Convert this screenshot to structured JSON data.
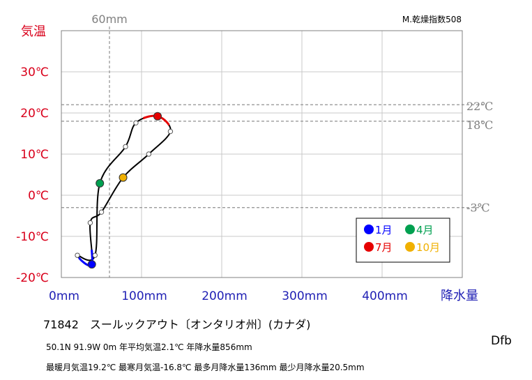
{
  "chart_data": {
    "type": "line",
    "x_axis": {
      "label": "降水量",
      "unit": "mm",
      "range": [
        0,
        500
      ],
      "ticks": [
        "0mm",
        "100mm",
        "200mm",
        "300mm",
        "400mm"
      ],
      "tick_values": [
        0,
        100,
        200,
        300,
        400
      ]
    },
    "y_axis": {
      "label": "気温",
      "unit": "℃",
      "range": [
        -20,
        40
      ],
      "ticks": [
        "30℃",
        "20℃",
        "10℃",
        "0℃",
        "-10℃",
        "-20℃"
      ],
      "tick_values": [
        30,
        20,
        10,
        0,
        -10,
        -20
      ]
    },
    "grid": true,
    "reference_lines": {
      "precip_mm": [
        {
          "value": 60,
          "label": "60mm"
        }
      ],
      "temp_c": [
        {
          "value": 22,
          "label": "22℃"
        },
        {
          "value": 18,
          "label": "18℃"
        },
        {
          "value": -3,
          "label": "-3℃"
        }
      ]
    },
    "aridity_label": "M.乾燥指数508",
    "points": [
      {
        "month": 1,
        "precip": 38,
        "temp": -16.8
      },
      {
        "month": 2,
        "precip": 20,
        "temp": -14.6
      },
      {
        "month": 3,
        "precip": 42,
        "temp": -14.6
      },
      {
        "month": 4,
        "precip": 48,
        "temp": 2.9
      },
      {
        "month": 5,
        "precip": 80,
        "temp": 11.8
      },
      {
        "month": 6,
        "precip": 93,
        "temp": 17.6
      },
      {
        "month": 7,
        "precip": 120,
        "temp": 19.2
      },
      {
        "month": 8,
        "precip": 136,
        "temp": 15.5
      },
      {
        "month": 9,
        "precip": 109,
        "temp": 10.0
      },
      {
        "month": 10,
        "precip": 77,
        "temp": 4.3
      },
      {
        "month": 11,
        "precip": 50,
        "temp": -4.1
      },
      {
        "month": 12,
        "precip": 36,
        "temp": -6.7
      }
    ],
    "highlights": [
      {
        "month": 1,
        "label": "1月",
        "color": "#0000ff"
      },
      {
        "month": 4,
        "label": "4月",
        "color": "#00a050"
      },
      {
        "month": 7,
        "label": "7月",
        "color": "#e60000"
      },
      {
        "month": 10,
        "label": "10月",
        "color": "#f0b000"
      }
    ],
    "legend": {
      "placement": "bottom-right"
    }
  },
  "station": {
    "line": "71842　スールックアウト〔オンタリオ州〕(カナダ)",
    "stats": "50.1N  91.9W 0m  年平均気温2.1℃ 年降水量856mm",
    "extremes": "最暖月気温19.2℃ 最寒月気温-16.8℃ 最多月降水量136mm 最少月降水量20.5mm",
    "koppen": "Dfb"
  }
}
